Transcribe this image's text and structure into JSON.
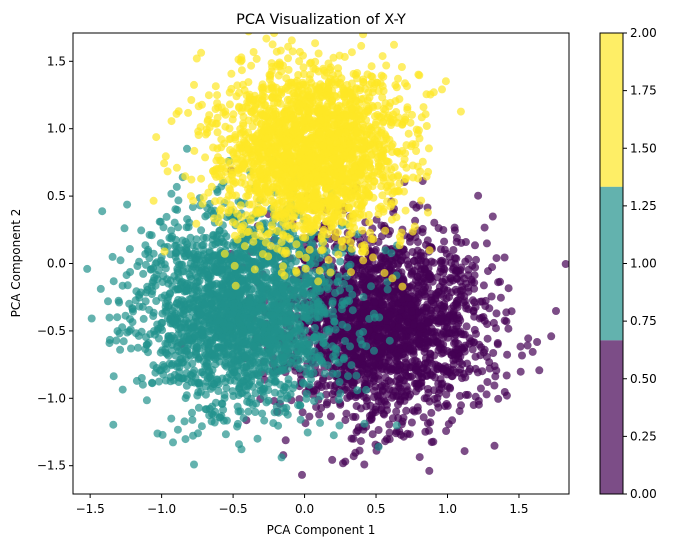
{
  "chart_data": {
    "type": "scatter",
    "title": "PCA Visualization of X-Y",
    "xlabel": "PCA Component 1",
    "ylabel": "PCA Component 2",
    "xlim": [
      -1.62,
      1.85
    ],
    "ylim": [
      -1.71,
      1.71
    ],
    "xticks": [
      -1.5,
      -1.0,
      -0.5,
      0.0,
      0.5,
      1.0,
      1.5
    ],
    "xtick_labels": [
      "−1.5",
      "−1.0",
      "−0.5",
      "0.0",
      "0.5",
      "1.0",
      "1.5"
    ],
    "yticks": [
      -1.5,
      -1.0,
      -0.5,
      0.0,
      0.5,
      1.0,
      1.5
    ],
    "ytick_labels": [
      "−1.5",
      "−1.0",
      "−0.5",
      "0.0",
      "0.5",
      "1.0",
      "1.5"
    ],
    "grid": false,
    "legend": "none",
    "point_alpha": 0.7,
    "clusters": [
      {
        "label_value": 0,
        "color": "#440154",
        "center": [
          0.55,
          -0.45
        ],
        "spread": 0.36
      },
      {
        "label_value": 1,
        "color": "#21918c",
        "center": [
          -0.45,
          -0.35
        ],
        "spread": 0.36
      },
      {
        "label_value": 2,
        "color": "#fde725",
        "center": [
          0.05,
          0.82
        ],
        "spread": 0.33
      }
    ],
    "points_per_cluster": 2200,
    "colorbar": {
      "range": [
        0.0,
        2.0
      ],
      "ticks": [
        0.0,
        0.25,
        0.5,
        0.75,
        1.0,
        1.25,
        1.5,
        1.75,
        2.0
      ],
      "tick_labels": [
        "0.00",
        "0.25",
        "0.50",
        "0.75",
        "1.00",
        "1.25",
        "1.50",
        "1.75",
        "2.00"
      ],
      "segments": [
        {
          "from": 0.0,
          "to": 0.667,
          "color": "#440154"
        },
        {
          "from": 0.667,
          "to": 1.333,
          "color": "#21918c"
        },
        {
          "from": 1.333,
          "to": 2.0,
          "color": "#fde725"
        }
      ],
      "alpha": 0.7
    }
  }
}
